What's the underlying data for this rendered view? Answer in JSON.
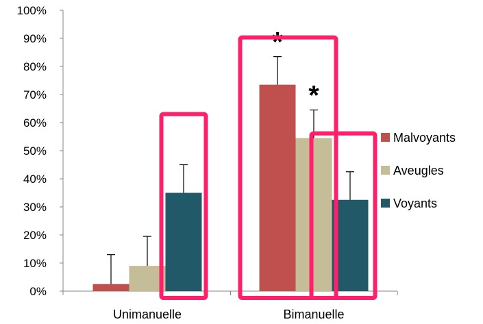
{
  "chart_data": {
    "type": "bar",
    "title": "",
    "xlabel": "",
    "ylabel": "",
    "categories": [
      "Unimanuelle",
      "Bimanuelle"
    ],
    "ylim": [
      0,
      100
    ],
    "yticks": [
      "0%",
      "10%",
      "20%",
      "30%",
      "40%",
      "50%",
      "60%",
      "70%",
      "80%",
      "90%",
      "100%"
    ],
    "grid": false,
    "legend_position": "right",
    "series": [
      {
        "name": "Malvoyants",
        "color": "#C0504D",
        "values": [
          2.5,
          73.5
        ],
        "error_upper": [
          10.5,
          10
        ]
      },
      {
        "name": "Aveugles",
        "color": "#C4BD97",
        "values": [
          9,
          54.5
        ],
        "error_upper": [
          10.5,
          10
        ]
      },
      {
        "name": "Voyants",
        "color": "#215968",
        "values": [
          35,
          32.5
        ],
        "error_upper": [
          10,
          10
        ]
      }
    ],
    "annotations": [
      {
        "text": "*",
        "category": "Bimanuelle",
        "series": "Malvoyants"
      },
      {
        "text": "*",
        "category": "Bimanuelle",
        "series": "Aveugles"
      }
    ],
    "highlight_color": "#FF1F6B",
    "highlights": [
      {
        "category": "Unimanuelle",
        "series": [
          "Voyants"
        ]
      },
      {
        "category": "Bimanuelle",
        "series": [
          "Malvoyants",
          "Aveugles"
        ]
      },
      {
        "category": "Bimanuelle",
        "series": [
          "Voyants"
        ]
      }
    ]
  }
}
